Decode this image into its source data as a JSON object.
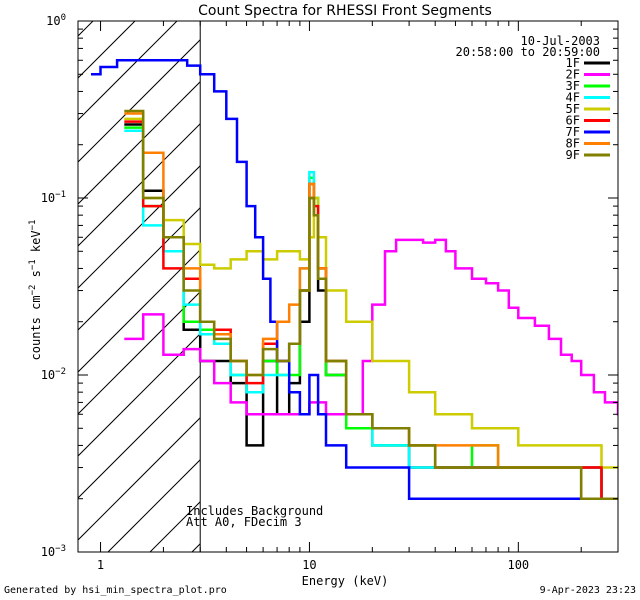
{
  "chart_data": {
    "type": "line",
    "title": "Count Spectra for RHESSI Front Segments",
    "xlabel": "Energy (keV)",
    "ylabel_parts": {
      "base": "counts cm",
      "sup1": "−2",
      "mid1": " s",
      "sup2": "−1",
      "mid2": " keV",
      "sup3": "−1"
    },
    "xscale": "log",
    "yscale": "log",
    "xlim": [
      0.78,
      300
    ],
    "ylim": [
      0.001,
      1.0
    ],
    "xticks": [
      {
        "v": 1,
        "t": "1"
      },
      {
        "v": 10,
        "t": "10"
      },
      {
        "v": 100,
        "t": "100"
      }
    ],
    "yticks": [
      {
        "v": 0.001,
        "t": "10",
        "e": "−3"
      },
      {
        "v": 0.01,
        "t": "10",
        "e": "−2"
      },
      {
        "v": 0.1,
        "t": "10",
        "e": "−1"
      },
      {
        "v": 1,
        "t": "10",
        "e": "0"
      }
    ],
    "annotation": {
      "date": "10-Jul-2003",
      "time": "20:58:00 to 20:59:00"
    },
    "note_lines": [
      "Includes Background",
      "Att A0, FDecim 3"
    ],
    "shaded_region": [
      0.78,
      3.0
    ],
    "legend_position": "top-right",
    "series": [
      {
        "name": "1F",
        "color": "#000000",
        "values": [
          [
            1.3,
            0.26
          ],
          [
            1.6,
            0.11
          ],
          [
            2.0,
            0.05
          ],
          [
            2.5,
            0.018
          ],
          [
            3.0,
            0.012
          ],
          [
            3.5,
            0.012
          ],
          [
            4.2,
            0.009
          ],
          [
            5,
            0.004
          ],
          [
            6,
            0.012
          ],
          [
            7,
            0.006
          ],
          [
            8,
            0.009
          ],
          [
            9,
            0.02
          ],
          [
            10,
            0.1
          ],
          [
            10.5,
            0.08
          ],
          [
            11,
            0.03
          ],
          [
            12,
            0.01
          ],
          [
            15,
            0.006
          ],
          [
            20,
            0.004
          ],
          [
            30,
            0.003
          ],
          [
            40,
            0.003
          ],
          [
            60,
            0.003
          ],
          [
            80,
            0.003
          ],
          [
            100,
            0.003
          ],
          [
            150,
            0.003
          ],
          [
            200,
            0.003
          ],
          [
            250,
            0.002
          ],
          [
            300,
            0.002
          ]
        ]
      },
      {
        "name": "2F",
        "color": "#ff00ff",
        "values": [
          [
            1.3,
            0.016
          ],
          [
            1.6,
            0.022
          ],
          [
            2.0,
            0.013
          ],
          [
            2.5,
            0.014
          ],
          [
            3.0,
            0.012
          ],
          [
            3.5,
            0.009
          ],
          [
            4.2,
            0.007
          ],
          [
            5,
            0.006
          ],
          [
            6,
            0.006
          ],
          [
            7,
            0.006
          ],
          [
            8,
            0.006
          ],
          [
            9,
            0.006
          ],
          [
            10,
            0.007
          ],
          [
            12,
            0.006
          ],
          [
            15,
            0.006
          ],
          [
            18,
            0.012
          ],
          [
            20,
            0.025
          ],
          [
            23,
            0.05
          ],
          [
            26,
            0.058
          ],
          [
            30,
            0.058
          ],
          [
            35,
            0.056
          ],
          [
            40,
            0.058
          ],
          [
            45,
            0.05
          ],
          [
            50,
            0.04
          ],
          [
            60,
            0.035
          ],
          [
            70,
            0.033
          ],
          [
            80,
            0.03
          ],
          [
            90,
            0.024
          ],
          [
            100,
            0.021
          ],
          [
            120,
            0.019
          ],
          [
            140,
            0.016
          ],
          [
            160,
            0.013
          ],
          [
            180,
            0.012
          ],
          [
            200,
            0.01
          ],
          [
            230,
            0.008
          ],
          [
            260,
            0.007
          ],
          [
            300,
            0.006
          ]
        ]
      },
      {
        "name": "3F",
        "color": "#00ff00",
        "values": [
          [
            1.3,
            0.25
          ],
          [
            1.6,
            0.09
          ],
          [
            2.0,
            0.05
          ],
          [
            2.5,
            0.02
          ],
          [
            3.0,
            0.018
          ],
          [
            3.5,
            0.015
          ],
          [
            4.2,
            0.01
          ],
          [
            5,
            0.008
          ],
          [
            6,
            0.012
          ],
          [
            7,
            0.01
          ],
          [
            8,
            0.01
          ],
          [
            9,
            0.03
          ],
          [
            10,
            0.13
          ],
          [
            10.5,
            0.1
          ],
          [
            11,
            0.04
          ],
          [
            12,
            0.01
          ],
          [
            15,
            0.005
          ],
          [
            20,
            0.004
          ],
          [
            30,
            0.004
          ],
          [
            40,
            0.003
          ],
          [
            60,
            0.004
          ],
          [
            80,
            0.003
          ],
          [
            100,
            0.003
          ],
          [
            150,
            0.003
          ],
          [
            200,
            0.002
          ],
          [
            250,
            0.002
          ],
          [
            300,
            0.002
          ]
        ]
      },
      {
        "name": "4F",
        "color": "#00ffff",
        "values": [
          [
            1.3,
            0.24
          ],
          [
            1.6,
            0.07
          ],
          [
            2.0,
            0.05
          ],
          [
            2.5,
            0.025
          ],
          [
            3.0,
            0.017
          ],
          [
            3.5,
            0.015
          ],
          [
            4.2,
            0.01
          ],
          [
            5,
            0.008
          ],
          [
            6,
            0.01
          ],
          [
            7,
            0.01
          ],
          [
            8,
            0.015
          ],
          [
            9,
            0.04
          ],
          [
            10,
            0.14
          ],
          [
            10.5,
            0.1
          ],
          [
            11,
            0.04
          ],
          [
            12,
            0.012
          ],
          [
            15,
            0.006
          ],
          [
            20,
            0.004
          ],
          [
            30,
            0.003
          ],
          [
            40,
            0.003
          ],
          [
            60,
            0.003
          ],
          [
            80,
            0.003
          ],
          [
            100,
            0.003
          ],
          [
            150,
            0.003
          ],
          [
            200,
            0.002
          ],
          [
            250,
            0.002
          ],
          [
            300,
            0.002
          ]
        ]
      },
      {
        "name": "5F",
        "color": "#cccc00",
        "values": [
          [
            1.3,
            0.28
          ],
          [
            1.6,
            0.1
          ],
          [
            2.0,
            0.075
          ],
          [
            2.5,
            0.055
          ],
          [
            3.0,
            0.042
          ],
          [
            3.5,
            0.04
          ],
          [
            4.2,
            0.045
          ],
          [
            5,
            0.05
          ],
          [
            6,
            0.045
          ],
          [
            7,
            0.05
          ],
          [
            8,
            0.05
          ],
          [
            9,
            0.045
          ],
          [
            10,
            0.06
          ],
          [
            10.5,
            0.1
          ],
          [
            11,
            0.06
          ],
          [
            12,
            0.03
          ],
          [
            15,
            0.02
          ],
          [
            20,
            0.012
          ],
          [
            30,
            0.008
          ],
          [
            40,
            0.006
          ],
          [
            60,
            0.005
          ],
          [
            80,
            0.005
          ],
          [
            100,
            0.004
          ],
          [
            150,
            0.004
          ],
          [
            200,
            0.004
          ],
          [
            250,
            0.003
          ],
          [
            300,
            0.003
          ]
        ]
      },
      {
        "name": "6F",
        "color": "#ff0000",
        "values": [
          [
            1.3,
            0.27
          ],
          [
            1.6,
            0.09
          ],
          [
            2.0,
            0.04
          ],
          [
            2.5,
            0.035
          ],
          [
            3.0,
            0.02
          ],
          [
            3.5,
            0.018
          ],
          [
            4.2,
            0.012
          ],
          [
            5,
            0.009
          ],
          [
            6,
            0.015
          ],
          [
            7,
            0.012
          ],
          [
            8,
            0.015
          ],
          [
            9,
            0.03
          ],
          [
            10,
            0.12
          ],
          [
            10.5,
            0.09
          ],
          [
            11,
            0.04
          ],
          [
            12,
            0.012
          ],
          [
            15,
            0.006
          ],
          [
            20,
            0.005
          ],
          [
            30,
            0.004
          ],
          [
            40,
            0.003
          ],
          [
            60,
            0.003
          ],
          [
            80,
            0.003
          ],
          [
            100,
            0.003
          ],
          [
            150,
            0.003
          ],
          [
            200,
            0.003
          ],
          [
            250,
            0.002
          ],
          [
            300,
            0.002
          ]
        ]
      },
      {
        "name": "7F",
        "color": "#0000ff",
        "values": [
          [
            0.9,
            0.5
          ],
          [
            1.0,
            0.55
          ],
          [
            1.2,
            0.6
          ],
          [
            1.5,
            0.6
          ],
          [
            1.8,
            0.6
          ],
          [
            2.2,
            0.6
          ],
          [
            2.6,
            0.56
          ],
          [
            3.0,
            0.5
          ],
          [
            3.5,
            0.4
          ],
          [
            4.0,
            0.28
          ],
          [
            4.5,
            0.16
          ],
          [
            5.0,
            0.09
          ],
          [
            5.5,
            0.06
          ],
          [
            6,
            0.035
          ],
          [
            6.5,
            0.02
          ],
          [
            7,
            0.012
          ],
          [
            8,
            0.008
          ],
          [
            9,
            0.006
          ],
          [
            10,
            0.01
          ],
          [
            11,
            0.006
          ],
          [
            12,
            0.004
          ],
          [
            15,
            0.003
          ],
          [
            20,
            0.003
          ],
          [
            30,
            0.002
          ],
          [
            40,
            0.002
          ],
          [
            60,
            0.002
          ],
          [
            80,
            0.002
          ],
          [
            100,
            0.002
          ],
          [
            150,
            0.002
          ],
          [
            200,
            0.002
          ],
          [
            250,
            0.002
          ],
          [
            300,
            0.002
          ]
        ]
      },
      {
        "name": "8F",
        "color": "#ff8000",
        "values": [
          [
            1.3,
            0.3
          ],
          [
            1.6,
            0.18
          ],
          [
            2.0,
            0.06
          ],
          [
            2.5,
            0.04
          ],
          [
            3.0,
            0.02
          ],
          [
            3.5,
            0.017
          ],
          [
            4.2,
            0.012
          ],
          [
            5,
            0.01
          ],
          [
            6,
            0.016
          ],
          [
            7,
            0.02
          ],
          [
            8,
            0.025
          ],
          [
            9,
            0.04
          ],
          [
            10,
            0.12
          ],
          [
            10.5,
            0.08
          ],
          [
            11,
            0.04
          ],
          [
            12,
            0.012
          ],
          [
            15,
            0.006
          ],
          [
            20,
            0.005
          ],
          [
            30,
            0.004
          ],
          [
            40,
            0.004
          ],
          [
            60,
            0.004
          ],
          [
            80,
            0.003
          ],
          [
            100,
            0.003
          ],
          [
            150,
            0.003
          ],
          [
            200,
            0.002
          ],
          [
            250,
            0.002
          ],
          [
            300,
            0.002
          ]
        ]
      },
      {
        "name": "9F",
        "color": "#808000",
        "values": [
          [
            1.3,
            0.31
          ],
          [
            1.6,
            0.1
          ],
          [
            2.0,
            0.06
          ],
          [
            2.5,
            0.03
          ],
          [
            3.0,
            0.02
          ],
          [
            3.5,
            0.016
          ],
          [
            4.2,
            0.012
          ],
          [
            5,
            0.01
          ],
          [
            6,
            0.014
          ],
          [
            7,
            0.012
          ],
          [
            8,
            0.015
          ],
          [
            9,
            0.03
          ],
          [
            10,
            0.1
          ],
          [
            10.5,
            0.08
          ],
          [
            11,
            0.035
          ],
          [
            12,
            0.012
          ],
          [
            15,
            0.006
          ],
          [
            20,
            0.005
          ],
          [
            30,
            0.004
          ],
          [
            40,
            0.003
          ],
          [
            60,
            0.003
          ],
          [
            80,
            0.003
          ],
          [
            100,
            0.003
          ],
          [
            150,
            0.003
          ],
          [
            200,
            0.002
          ],
          [
            250,
            0.002
          ],
          [
            300,
            0.002
          ]
        ]
      }
    ]
  },
  "footer": {
    "left": "Generated by hsi_min_spectra_plot.pro",
    "right": "9-Apr-2023 23:23"
  }
}
